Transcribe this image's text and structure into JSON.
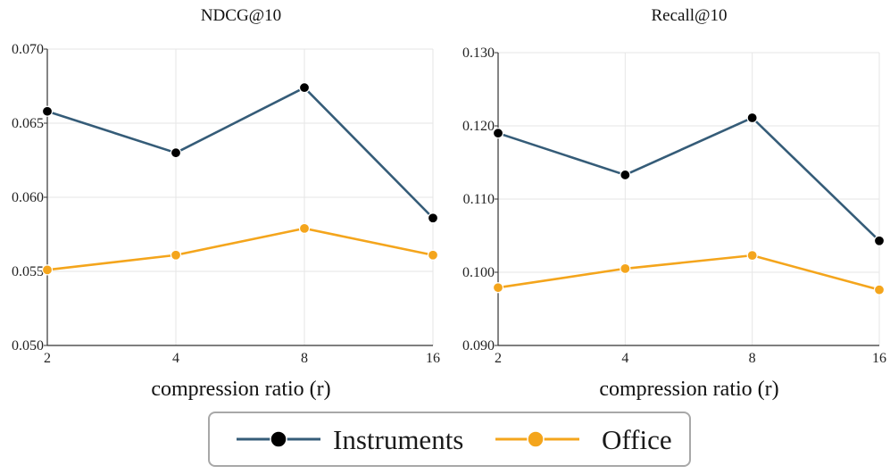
{
  "chart_data": [
    {
      "type": "line",
      "title": "NDCG@10",
      "xlabel": "compression ratio (r)",
      "ylabel": "",
      "categories": [
        "2",
        "4",
        "8",
        "16"
      ],
      "ylim": [
        0.05,
        0.07
      ],
      "yticks": [
        "0.050",
        "0.055",
        "0.060",
        "0.065",
        "0.070"
      ],
      "grid": true,
      "series": [
        {
          "name": "Instruments",
          "values": [
            0.0658,
            0.063,
            0.0674,
            0.0586
          ]
        },
        {
          "name": "Office",
          "values": [
            0.0551,
            0.0561,
            0.0579,
            0.0561
          ]
        }
      ]
    },
    {
      "type": "line",
      "title": "Recall@10",
      "xlabel": "compression ratio (r)",
      "ylabel": "",
      "categories": [
        "2",
        "4",
        "8",
        "16"
      ],
      "ylim": [
        0.09,
        0.13
      ],
      "yticks": [
        "0.090",
        "0.100",
        "0.110",
        "0.120",
        "0.130"
      ],
      "grid": true,
      "series": [
        {
          "name": "Instruments",
          "values": [
            0.119,
            0.1133,
            0.1211,
            0.1043
          ]
        },
        {
          "name": "Office",
          "values": [
            0.0979,
            0.1005,
            0.1023,
            0.0976
          ]
        }
      ]
    }
  ],
  "legend": {
    "placement": "bottom-center",
    "items": [
      {
        "label": "Instruments",
        "line_color": "#355c78",
        "marker_color": "#000000"
      },
      {
        "label": "Office",
        "line_color": "#f4a51c",
        "marker_color": "#f4a51c"
      }
    ]
  },
  "colors": {
    "instruments_line": "#355c78",
    "instruments_marker": "#000000",
    "office_line": "#f4a51c",
    "office_marker": "#f4a51c",
    "grid": "#e6e6e6",
    "axis": "#333333"
  }
}
